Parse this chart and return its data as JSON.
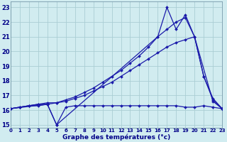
{
  "title": "Graphe des températures (°c)",
  "bg_color": "#d1ecf0",
  "line_color": "#1a1aaa",
  "grid_color": "#aacdd4",
  "xlim": [
    0,
    23
  ],
  "ylim": [
    14.8,
    23.4
  ],
  "yticks": [
    15,
    16,
    17,
    18,
    19,
    20,
    21,
    22,
    23
  ],
  "xticks": [
    0,
    1,
    2,
    3,
    4,
    5,
    6,
    7,
    8,
    9,
    10,
    11,
    12,
    13,
    14,
    15,
    16,
    17,
    18,
    19,
    20,
    21,
    22,
    23
  ],
  "series": [
    {
      "x": [
        0,
        1,
        2,
        3,
        4,
        5,
        6,
        7,
        8,
        9,
        10,
        11,
        12,
        13,
        14,
        15,
        16,
        17,
        18,
        19,
        20,
        21,
        22,
        23
      ],
      "y": [
        16.1,
        16.2,
        16.3,
        16.3,
        16.4,
        15.0,
        16.2,
        16.3,
        16.3,
        16.3,
        16.3,
        16.3,
        16.3,
        16.3,
        16.3,
        16.3,
        16.3,
        16.3,
        16.3,
        16.2,
        16.2,
        16.3,
        16.2,
        16.1
      ]
    },
    {
      "x": [
        0,
        1,
        2,
        3,
        4,
        5,
        6,
        7,
        8,
        9,
        10,
        11,
        12,
        13,
        14,
        15,
        16,
        17,
        18,
        19,
        20,
        21,
        22,
        23
      ],
      "y": [
        16.1,
        16.2,
        16.3,
        16.4,
        16.5,
        16.5,
        16.6,
        16.8,
        17.0,
        17.3,
        17.6,
        17.9,
        18.3,
        18.7,
        19.1,
        19.5,
        19.9,
        20.3,
        20.6,
        20.8,
        21.0,
        18.3,
        16.8,
        16.1
      ]
    },
    {
      "x": [
        0,
        1,
        2,
        3,
        4,
        5,
        6,
        7,
        8,
        9,
        10,
        11,
        12,
        13,
        14,
        15,
        16,
        17,
        18,
        19,
        20,
        21,
        22,
        23
      ],
      "y": [
        16.1,
        16.2,
        16.3,
        16.4,
        16.4,
        16.5,
        16.7,
        16.9,
        17.2,
        17.5,
        17.9,
        18.3,
        18.7,
        19.2,
        19.7,
        20.3,
        21.0,
        21.5,
        22.0,
        22.3,
        21.0,
        18.3,
        16.7,
        16.1
      ]
    },
    {
      "x": [
        0,
        4,
        5,
        16,
        17,
        18,
        19,
        20,
        22,
        23
      ],
      "y": [
        16.1,
        16.4,
        15.0,
        21.0,
        23.0,
        21.5,
        22.5,
        21.0,
        16.6,
        16.1
      ]
    }
  ]
}
